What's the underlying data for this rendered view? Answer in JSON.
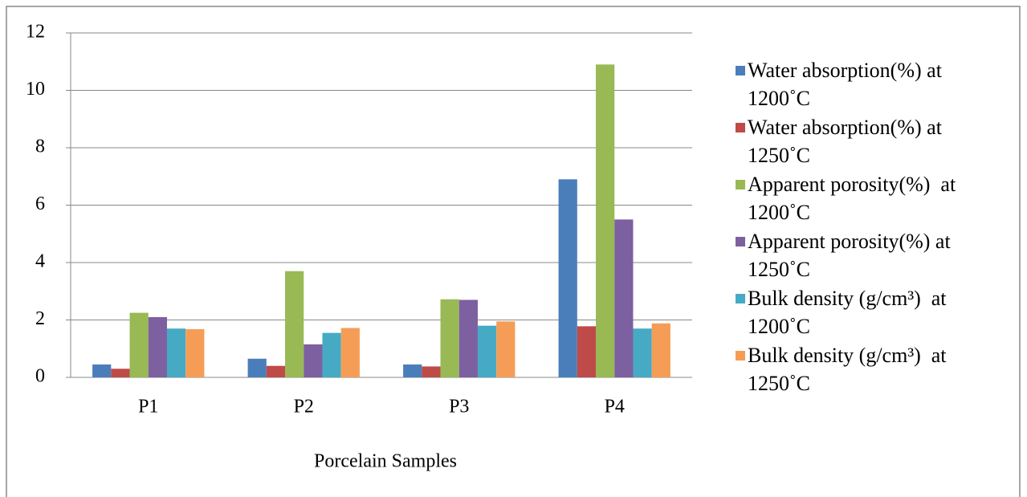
{
  "chart_data": {
    "type": "bar",
    "categories": [
      "P1",
      "P2",
      "P3",
      "P4"
    ],
    "x_label": "Porcelain Samples",
    "series": [
      {
        "name": "Water absorption(%) at 1200˚C",
        "color": "#4a7ebb",
        "values": [
          0.45,
          0.65,
          0.45,
          6.9
        ]
      },
      {
        "name": "Water absorption(%) at 1250˚C",
        "color": "#be4b48",
        "values": [
          0.3,
          0.4,
          0.38,
          1.78
        ]
      },
      {
        "name": "Apparent porosity(%)  at 1200˚C",
        "color": "#98b954",
        "values": [
          2.25,
          3.7,
          2.72,
          10.9
        ]
      },
      {
        "name": "Apparent porosity(%) at 1250˚C",
        "color": "#7d60a0",
        "values": [
          2.1,
          1.15,
          2.7,
          5.5
        ]
      },
      {
        "name": "Bulk density (g/cm³)  at 1200˚C",
        "color": "#46aac5",
        "values": [
          1.7,
          1.55,
          1.8,
          1.7
        ]
      },
      {
        "name": "Bulk density (g/cm³)  at 1250˚C",
        "color": "#f59d56",
        "values": [
          1.68,
          1.72,
          1.95,
          1.88
        ]
      }
    ],
    "ylim": [
      0,
      12
    ],
    "yticks": [
      0,
      2,
      4,
      6,
      8,
      10,
      12
    ],
    "grid": true,
    "legend": "right"
  }
}
